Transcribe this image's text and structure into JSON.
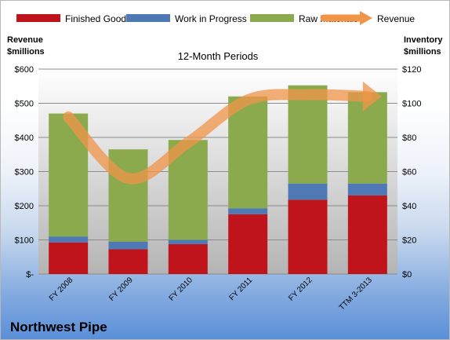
{
  "chart_data": {
    "type": "bar",
    "stacked": true,
    "title": "12-Month Periods",
    "categories": [
      "FY 2008",
      "FY 2009",
      "FY 2010",
      "FY 2011",
      "FY 2012",
      "TTM 3-2013"
    ],
    "series": [
      {
        "name": "Finished Goods",
        "axis": "right",
        "color": "#c0141c",
        "values": [
          18.5,
          14.5,
          17.5,
          35,
          43.5,
          46
        ]
      },
      {
        "name": "Work in Progress",
        "axis": "right",
        "color": "#4f79b5",
        "values": [
          3.5,
          4.5,
          2.5,
          3.5,
          9.5,
          7
        ]
      },
      {
        "name": "Raw Materials",
        "axis": "right",
        "color": "#8aaa4d",
        "values": [
          72,
          54,
          58.5,
          65.5,
          57.5,
          53.5
        ]
      },
      {
        "name": "Revenue",
        "type": "line",
        "axis": "left",
        "color": "#f0944a",
        "values": [
          460,
          280,
          385,
          510,
          525,
          520
        ]
      }
    ],
    "left_axis": {
      "label_line1": "Revenue",
      "label_line2": "$millions",
      "ylim": [
        0,
        600
      ],
      "ticks": [
        0,
        100,
        200,
        300,
        400,
        500,
        600
      ],
      "tick_labels": [
        "$-",
        "$100",
        "$200",
        "$300",
        "$400",
        "$500",
        "$600"
      ]
    },
    "right_axis": {
      "label_line1": "Inventory",
      "label_line2": "$millions",
      "ylim": [
        0,
        120
      ],
      "ticks": [
        0,
        20,
        40,
        60,
        80,
        100,
        120
      ],
      "tick_labels": [
        "$0",
        "$20",
        "$40",
        "$60",
        "$80",
        "$100",
        "$120"
      ]
    },
    "grid": true,
    "legend": "top"
  },
  "footer": {
    "title": "Northwest Pipe"
  }
}
